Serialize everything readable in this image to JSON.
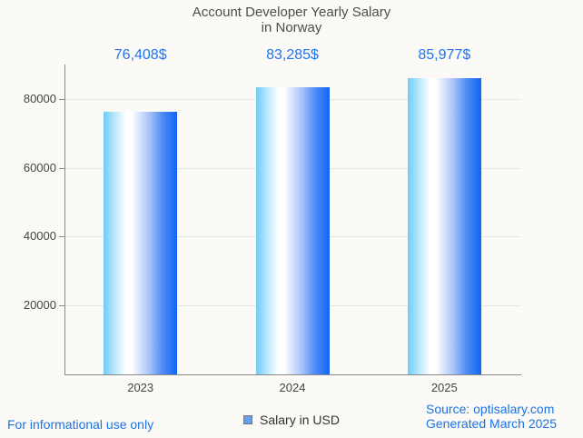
{
  "title": {
    "line1": "Account Developer Yearly Salary",
    "line2": "in Norway"
  },
  "chart_data": {
    "type": "bar",
    "title": "Account Developer Yearly Salary in Norway",
    "categories": [
      "2023",
      "2024",
      "2025"
    ],
    "series": [
      {
        "name": "Salary in USD",
        "values": [
          76408,
          83285,
          85977
        ]
      }
    ],
    "value_labels": [
      "76,408$",
      "83,285$",
      "85,977$"
    ],
    "xlabel": "",
    "ylabel": "",
    "ylim": [
      0,
      90000
    ],
    "yticks": [
      20000,
      40000,
      60000,
      80000
    ],
    "ytick_labels": [
      "20000",
      "40000",
      "60000",
      "80000"
    ],
    "grid": true,
    "legend_position": "bottom"
  },
  "legend": {
    "label": "Salary in USD"
  },
  "footer": {
    "left": "For informational use only",
    "source": "Source: optisalary.com",
    "generated": "Generated March 2025"
  },
  "colors": {
    "accent_blue": "#1a73e8",
    "value_label_blue": "#2273f0",
    "bar_gradient_left": "#6fcdf9",
    "bar_gradient_mid": "#ffffff",
    "bar_gradient_right": "#1165f3",
    "legend_swatch": "#63a0f3",
    "grid_line": "#e6e6e6",
    "axis_line": "#8a8a8a",
    "title_text": "#4d4d4d",
    "axis_text": "#434343",
    "background": "#fbfaf6"
  }
}
